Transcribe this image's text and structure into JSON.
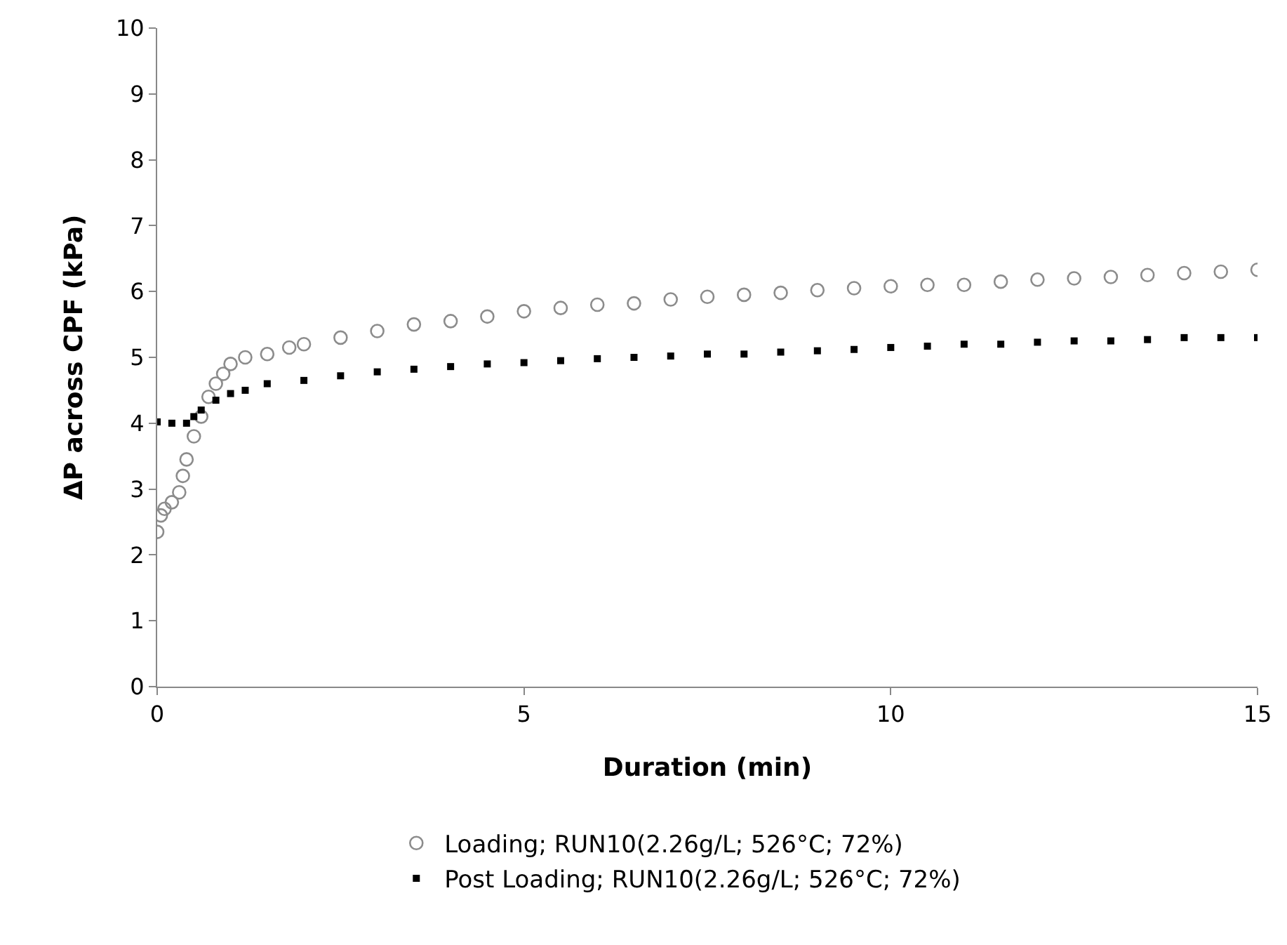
{
  "chart_data": {
    "type": "scatter",
    "xlabel": "Duration (min)",
    "ylabel": "ΔP across CPF (kPa)",
    "xlim": [
      0,
      15
    ],
    "xticks": [
      0,
      5,
      10,
      15
    ],
    "ylim": [
      0,
      10
    ],
    "yticks": [
      0,
      1,
      2,
      3,
      4,
      5,
      6,
      7,
      8,
      9,
      10
    ],
    "grid": false,
    "legend": "bottom",
    "series": [
      {
        "name": "Loading; RUN10(2.26g/L; 526°C; 72%)",
        "color": "#8c8c8c",
        "marker": "circle",
        "x": [
          0,
          0.05,
          0.1,
          0.2,
          0.3,
          0.35,
          0.4,
          0.5,
          0.6,
          0.7,
          0.8,
          0.9,
          1.0,
          1.2,
          1.5,
          1.8,
          2.0,
          2.5,
          3,
          3.5,
          4,
          4.5,
          5,
          5.5,
          6,
          6.5,
          7,
          7.5,
          8,
          8.5,
          9,
          9.5,
          10,
          10.5,
          11,
          11.5,
          12,
          12.5,
          13,
          13.5,
          14,
          14.5,
          15
        ],
        "values": [
          2.35,
          2.6,
          2.7,
          2.8,
          2.95,
          3.2,
          3.45,
          3.8,
          4.1,
          4.4,
          4.6,
          4.75,
          4.9,
          5.0,
          5.05,
          5.15,
          5.2,
          5.3,
          5.4,
          5.5,
          5.55,
          5.62,
          5.7,
          5.75,
          5.8,
          5.82,
          5.88,
          5.92,
          5.95,
          5.98,
          6.02,
          6.05,
          6.08,
          6.1,
          6.1,
          6.15,
          6.18,
          6.2,
          6.22,
          6.25,
          6.28,
          6.3,
          6.33
        ]
      },
      {
        "name": "Post Loading; RUN10(2.26g/L; 526°C; 72%)",
        "color": "#000000",
        "marker": "square",
        "x": [
          0,
          0.2,
          0.4,
          0.5,
          0.6,
          0.8,
          1.0,
          1.2,
          1.5,
          2,
          2.5,
          3,
          3.5,
          4,
          4.5,
          5,
          5.5,
          6,
          6.5,
          7,
          7.5,
          8,
          8.5,
          9,
          9.5,
          10,
          10.5,
          11,
          11.5,
          12,
          12.5,
          13,
          13.5,
          14,
          14.5,
          15
        ],
        "values": [
          4.02,
          4.0,
          4.0,
          4.1,
          4.2,
          4.35,
          4.45,
          4.5,
          4.6,
          4.65,
          4.72,
          4.78,
          4.82,
          4.86,
          4.9,
          4.92,
          4.95,
          4.98,
          5.0,
          5.02,
          5.05,
          5.05,
          5.08,
          5.1,
          5.12,
          5.15,
          5.17,
          5.2,
          5.2,
          5.23,
          5.25,
          5.25,
          5.27,
          5.3,
          5.3,
          5.3
        ]
      }
    ]
  }
}
